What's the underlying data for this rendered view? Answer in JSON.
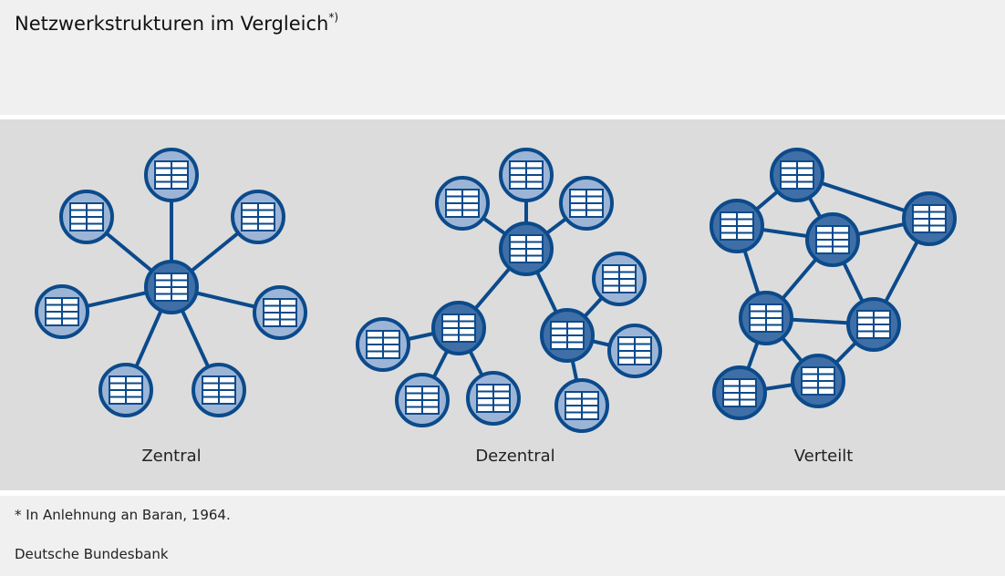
{
  "title": "Netzwerkstrukturen im Vergleich",
  "title_sup": "*)",
  "diagrams": [
    {
      "label": "Zentral"
    },
    {
      "label": "Dezentral"
    },
    {
      "label": "Verteilt"
    }
  ],
  "footnote": "* In Anlehnung an Baran, 1964.",
  "source": "Deutsche Bundesbank",
  "colors": {
    "stroke": "#0b4a8b",
    "node_light": "#9cb5d6",
    "node_dark": "#3f6fa6",
    "icon": "#ffffff"
  }
}
